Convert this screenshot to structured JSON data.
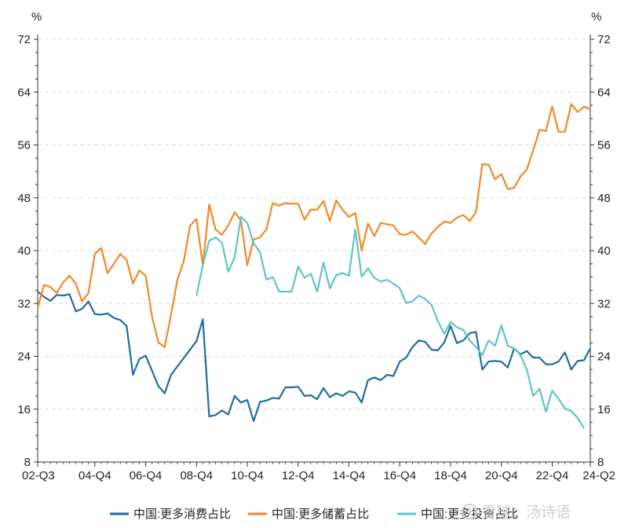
{
  "chart_data": {
    "type": "line",
    "unit_left": "%",
    "unit_right": "%",
    "y_ticks": [
      8,
      16,
      24,
      32,
      40,
      48,
      56,
      64,
      72
    ],
    "ylim": [
      8,
      72
    ],
    "grid": "horizontal-dashed",
    "x_tick_labels": [
      "02-Q3",
      "04-Q4",
      "06-Q4",
      "08-Q4",
      "10-Q4",
      "12-Q4",
      "14-Q4",
      "16-Q4",
      "18-Q4",
      "20-Q4",
      "22-Q4",
      "24-Q2"
    ],
    "legend_position": "bottom",
    "colors": {
      "consumption": "#1f6e9c",
      "savings": "#f08a24",
      "investment": "#5ec5c5"
    },
    "series": [
      {
        "key": "consumption",
        "name": "中国:更多消费占比",
        "points": [
          [
            0,
            33.8
          ],
          [
            1,
            33.0
          ],
          [
            2,
            32.4
          ],
          [
            3,
            33.3
          ],
          [
            4,
            33.2
          ],
          [
            5,
            33.4
          ],
          [
            6,
            30.8
          ],
          [
            7,
            31.2
          ],
          [
            8,
            32.3
          ],
          [
            9,
            30.4
          ],
          [
            10,
            30.3
          ],
          [
            11,
            30.5
          ],
          [
            12,
            29.8
          ],
          [
            13,
            29.5
          ],
          [
            14,
            28.6
          ],
          [
            15,
            21.2
          ],
          [
            16,
            23.6
          ],
          [
            17,
            24.1
          ],
          [
            18,
            21.8
          ],
          [
            19,
            19.5
          ],
          [
            20,
            18.4
          ],
          [
            21,
            21.2
          ],
          [
            25,
            26.3
          ],
          [
            26,
            29.6
          ],
          [
            27,
            14.9
          ],
          [
            28,
            15.1
          ],
          [
            29,
            15.8
          ],
          [
            30,
            15.2
          ],
          [
            31,
            18.0
          ],
          [
            32,
            17.0
          ],
          [
            33,
            17.4
          ],
          [
            34,
            14.2
          ],
          [
            35,
            17.1
          ],
          [
            36,
            17.3
          ],
          [
            37,
            17.7
          ],
          [
            38,
            17.6
          ],
          [
            39,
            19.3
          ],
          [
            40,
            19.3
          ],
          [
            41,
            19.4
          ],
          [
            42,
            18.0
          ],
          [
            43,
            18.1
          ],
          [
            44,
            17.5
          ],
          [
            45,
            19.2
          ],
          [
            46,
            17.8
          ],
          [
            47,
            18.4
          ],
          [
            48,
            18.0
          ],
          [
            49,
            18.7
          ],
          [
            50,
            18.5
          ],
          [
            51,
            17.0
          ],
          [
            52,
            20.4
          ],
          [
            53,
            20.8
          ],
          [
            54,
            20.4
          ],
          [
            55,
            21.2
          ],
          [
            56,
            21.0
          ],
          [
            57,
            23.2
          ],
          [
            58,
            23.8
          ],
          [
            59,
            25.4
          ],
          [
            60,
            26.4
          ],
          [
            61,
            26.2
          ],
          [
            62,
            25.0
          ],
          [
            63,
            24.9
          ],
          [
            64,
            26.1
          ],
          [
            65,
            28.6
          ],
          [
            66,
            26.0
          ],
          [
            67,
            26.4
          ],
          [
            68,
            27.5
          ],
          [
            69,
            27.7
          ],
          [
            70,
            22.0
          ],
          [
            71,
            23.2
          ],
          [
            72,
            23.3
          ],
          [
            73,
            23.2
          ],
          [
            74,
            22.3
          ],
          [
            75,
            25.2
          ],
          [
            76,
            24.3
          ],
          [
            77,
            24.8
          ],
          [
            78,
            23.8
          ],
          [
            79,
            23.8
          ],
          [
            80,
            22.8
          ],
          [
            81,
            22.8
          ],
          [
            82,
            23.2
          ],
          [
            83,
            24.6
          ],
          [
            84,
            22.0
          ],
          [
            85,
            23.3
          ],
          [
            86,
            23.4
          ],
          [
            87,
            25.2
          ]
        ]
      },
      {
        "key": "savings",
        "name": "中国:更多储蓄占比",
        "points": [
          [
            0,
            31.3
          ],
          [
            1,
            34.8
          ],
          [
            2,
            34.5
          ],
          [
            3,
            33.6
          ],
          [
            4,
            35.2
          ],
          [
            5,
            36.2
          ],
          [
            6,
            35.0
          ],
          [
            7,
            32.3
          ],
          [
            8,
            33.6
          ],
          [
            9,
            39.5
          ],
          [
            10,
            40.4
          ],
          [
            11,
            36.6
          ],
          [
            12,
            38.0
          ],
          [
            13,
            39.5
          ],
          [
            14,
            38.6
          ],
          [
            15,
            35.0
          ],
          [
            16,
            37.0
          ],
          [
            17,
            36.2
          ],
          [
            18,
            30.0
          ],
          [
            19,
            26.1
          ],
          [
            20,
            25.4
          ],
          [
            21,
            30.3
          ],
          [
            22,
            35.6
          ],
          [
            23,
            38.4
          ],
          [
            24,
            43.8
          ],
          [
            25,
            44.8
          ],
          [
            26,
            37.8
          ],
          [
            27,
            47.0
          ],
          [
            28,
            43.2
          ],
          [
            29,
            42.4
          ],
          [
            30,
            43.8
          ],
          [
            31,
            45.8
          ],
          [
            32,
            44.6
          ],
          [
            33,
            37.8
          ],
          [
            34,
            41.7
          ],
          [
            35,
            42.0
          ],
          [
            36,
            43.2
          ],
          [
            37,
            47.2
          ],
          [
            38,
            46.8
          ],
          [
            39,
            47.2
          ],
          [
            40,
            47.1
          ],
          [
            41,
            47.1
          ],
          [
            42,
            44.7
          ],
          [
            43,
            46.2
          ],
          [
            44,
            46.2
          ],
          [
            45,
            47.5
          ],
          [
            46,
            44.5
          ],
          [
            47,
            47.6
          ],
          [
            48,
            46.2
          ],
          [
            49,
            45.1
          ],
          [
            50,
            45.7
          ],
          [
            51,
            40.0
          ],
          [
            52,
            44.1
          ],
          [
            53,
            42.2
          ],
          [
            54,
            44.2
          ],
          [
            55,
            44.0
          ],
          [
            56,
            43.8
          ],
          [
            57,
            42.5
          ],
          [
            58,
            42.4
          ],
          [
            59,
            42.9
          ],
          [
            60,
            42.0
          ],
          [
            61,
            41.0
          ],
          [
            62,
            42.6
          ],
          [
            63,
            43.6
          ],
          [
            64,
            44.4
          ],
          [
            65,
            44.2
          ],
          [
            66,
            45.0
          ],
          [
            67,
            45.4
          ],
          [
            68,
            44.5
          ],
          [
            69,
            45.8
          ],
          [
            70,
            53.1
          ],
          [
            71,
            53.0
          ],
          [
            72,
            50.8
          ],
          [
            73,
            51.6
          ],
          [
            74,
            49.3
          ],
          [
            75,
            49.5
          ],
          [
            76,
            51.2
          ],
          [
            77,
            52.3
          ],
          [
            78,
            55.2
          ],
          [
            79,
            58.3
          ],
          [
            80,
            58.1
          ],
          [
            81,
            61.8
          ],
          [
            82,
            58.0
          ],
          [
            83,
            58.0
          ],
          [
            84,
            62.2
          ],
          [
            85,
            61.0
          ],
          [
            86,
            61.8
          ],
          [
            87,
            61.4
          ]
        ]
      },
      {
        "key": "investment",
        "name": "中国:更多投资占比",
        "points": [
          [
            25,
            33.2
          ],
          [
            26,
            37.8
          ],
          [
            27,
            41.5
          ],
          [
            28,
            42.0
          ],
          [
            29,
            41.2
          ],
          [
            30,
            36.8
          ],
          [
            31,
            39.0
          ],
          [
            32,
            45.1
          ],
          [
            33,
            44.2
          ],
          [
            34,
            41.1
          ],
          [
            35,
            39.8
          ],
          [
            36,
            35.6
          ],
          [
            37,
            36.0
          ],
          [
            38,
            33.8
          ],
          [
            39,
            33.8
          ],
          [
            40,
            33.8
          ],
          [
            41,
            37.6
          ],
          [
            42,
            35.9
          ],
          [
            43,
            36.5
          ],
          [
            44,
            33.8
          ],
          [
            45,
            38.2
          ],
          [
            46,
            34.3
          ],
          [
            47,
            36.3
          ],
          [
            48,
            36.6
          ],
          [
            49,
            36.2
          ],
          [
            50,
            43.2
          ],
          [
            51,
            36.1
          ],
          [
            52,
            37.3
          ],
          [
            53,
            35.9
          ],
          [
            54,
            35.3
          ],
          [
            55,
            35.6
          ],
          [
            56,
            35.0
          ],
          [
            57,
            34.3
          ],
          [
            58,
            32.1
          ],
          [
            59,
            32.3
          ],
          [
            60,
            33.2
          ],
          [
            61,
            32.7
          ],
          [
            62,
            31.8
          ],
          [
            63,
            29.3
          ],
          [
            64,
            27.4
          ],
          [
            65,
            29.2
          ],
          [
            66,
            28.4
          ],
          [
            67,
            28.0
          ],
          [
            68,
            26.4
          ],
          [
            69,
            25.4
          ],
          [
            70,
            24.2
          ],
          [
            71,
            26.4
          ],
          [
            72,
            25.6
          ],
          [
            73,
            28.7
          ],
          [
            74,
            25.6
          ],
          [
            75,
            25.2
          ],
          [
            76,
            24.2
          ],
          [
            77,
            22.0
          ],
          [
            78,
            18.0
          ],
          [
            79,
            19.1
          ],
          [
            80,
            15.6
          ],
          [
            81,
            18.8
          ],
          [
            82,
            17.6
          ],
          [
            83,
            16.1
          ],
          [
            84,
            15.7
          ],
          [
            85,
            14.7
          ],
          [
            86,
            13.1
          ]
        ]
      }
    ]
  },
  "watermark": "雪球：汤诗语"
}
